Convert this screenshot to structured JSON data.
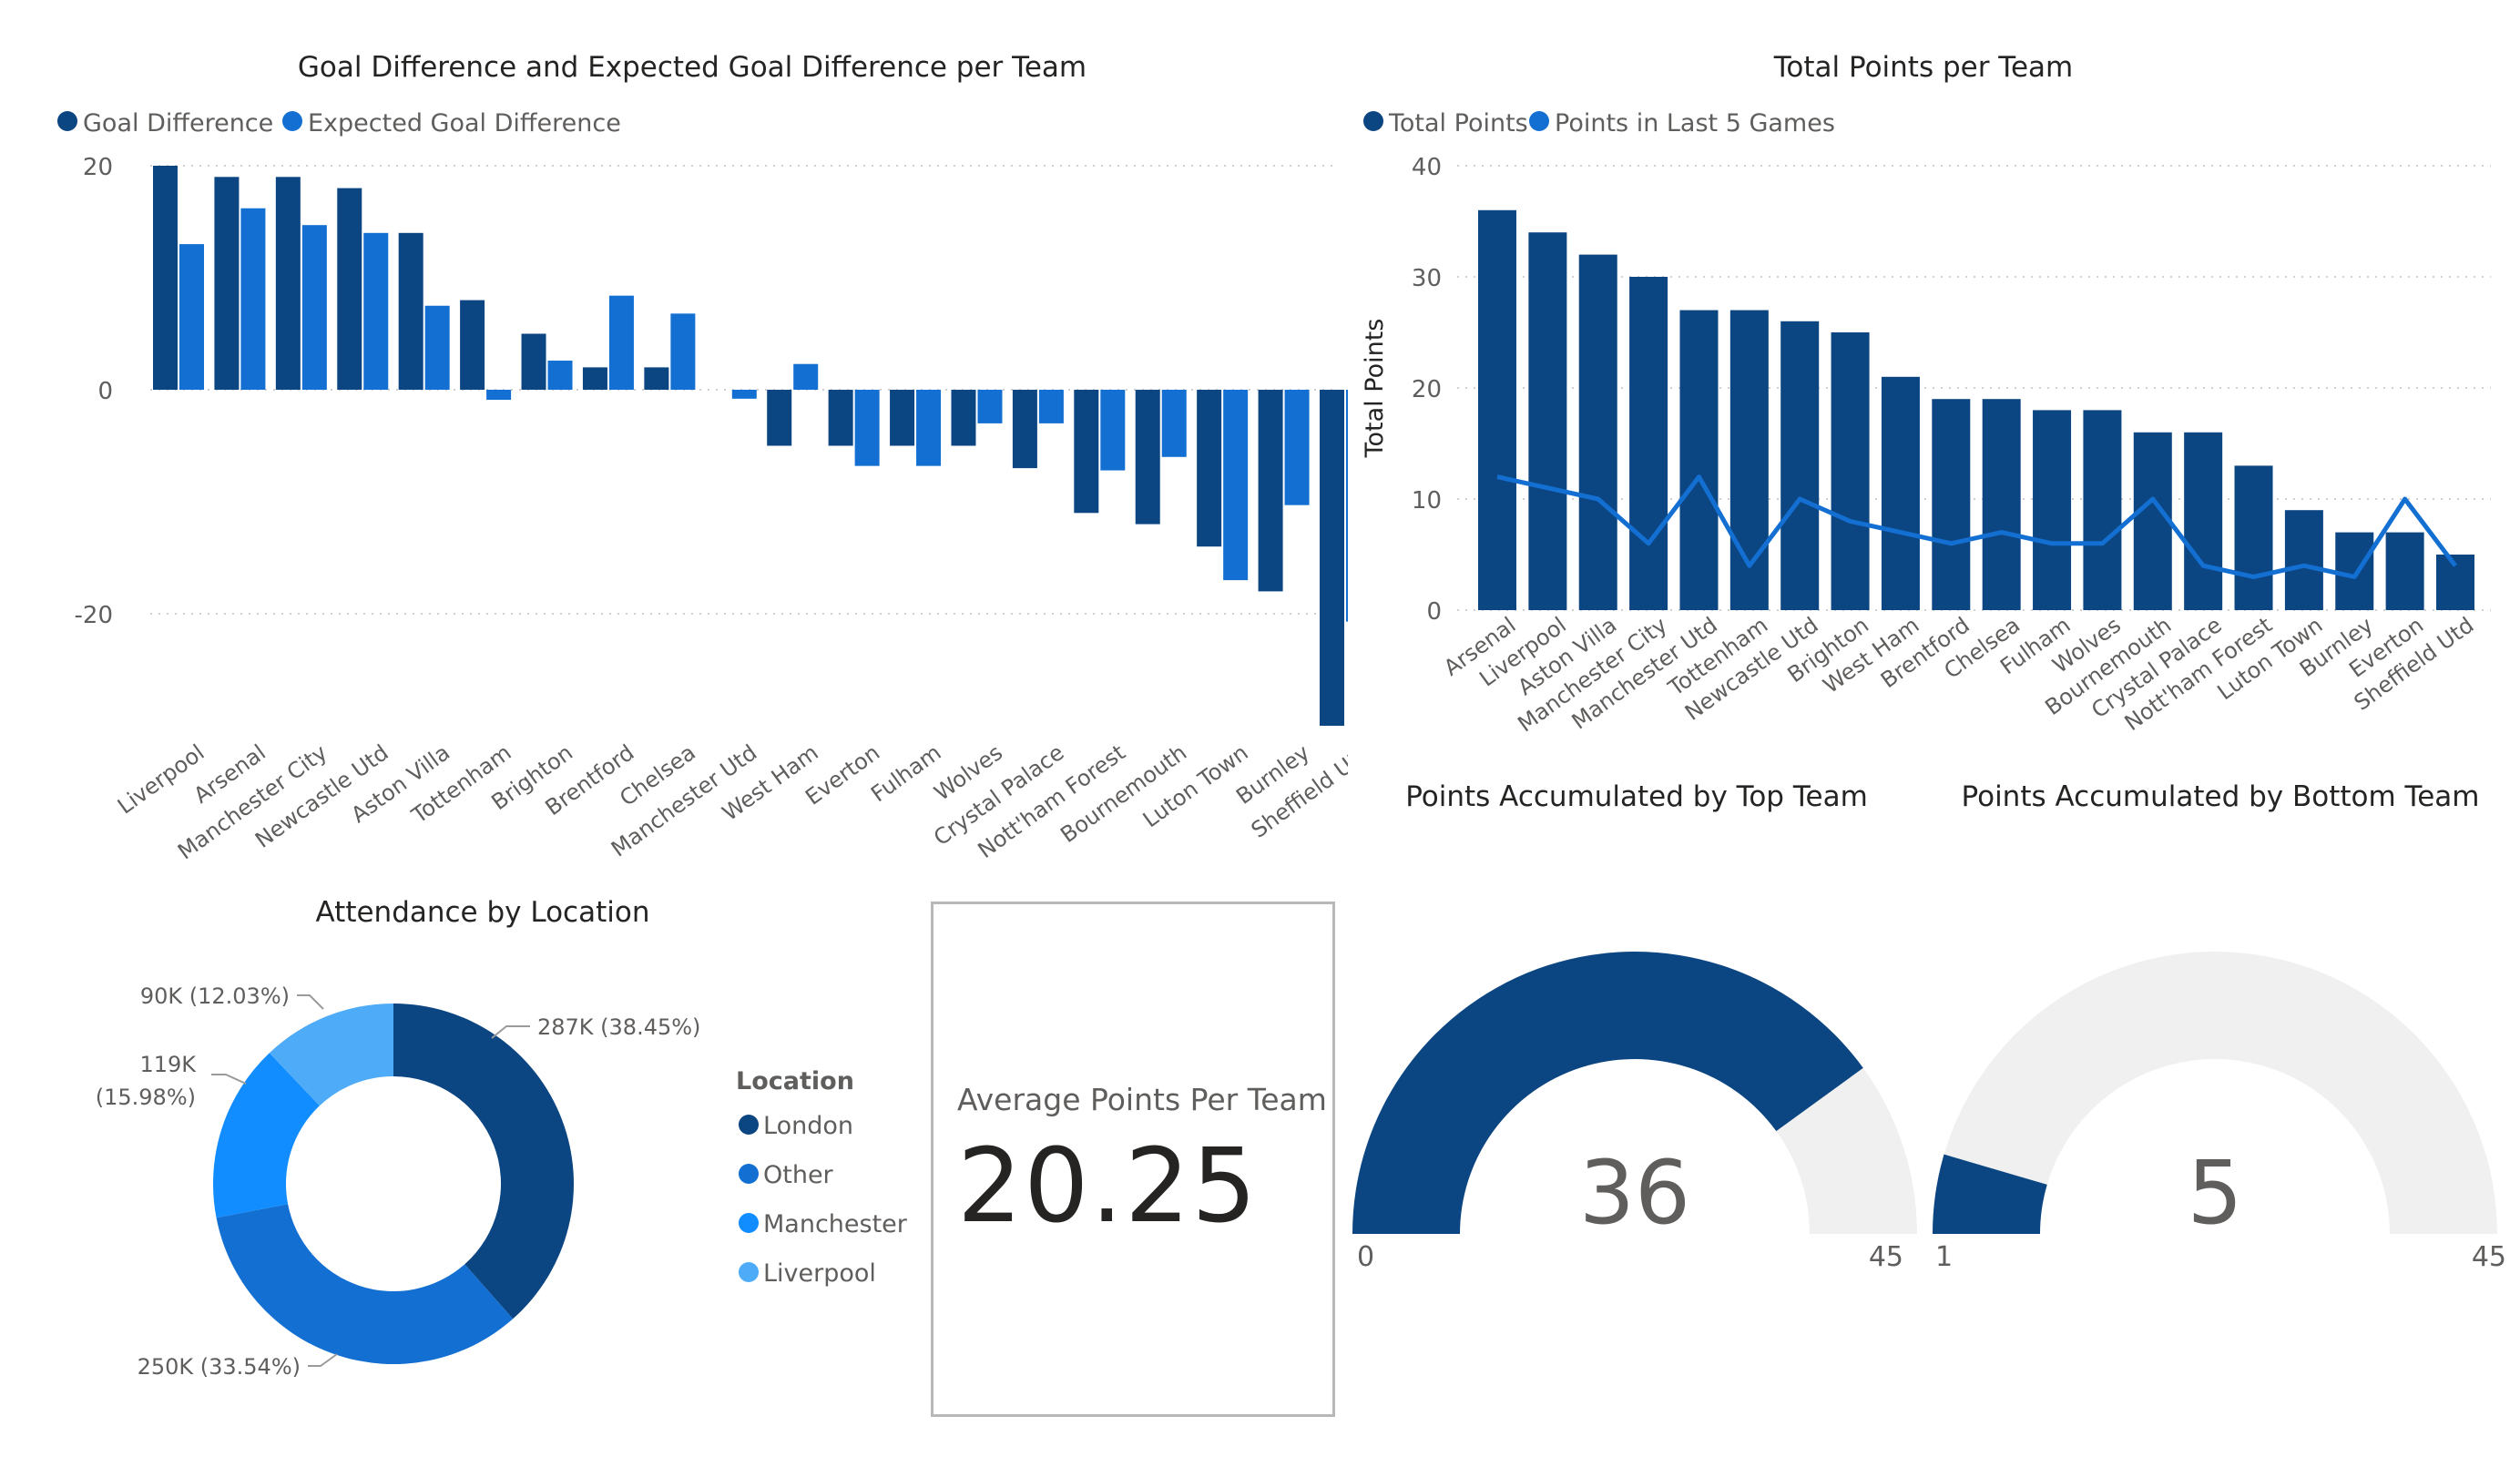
{
  "colors": {
    "dark_blue": "#0c4682",
    "mid_blue": "#136fd2",
    "bright_blue": "#118dff",
    "light_blue": "#4eabf7",
    "gauge_track": "#f0f0f0",
    "grid": "#d0d0d0",
    "text": "#252423",
    "muted": "#605e5c"
  },
  "kpi_card": {
    "label": "Average Points Per Team",
    "value": "20.25"
  },
  "chart_data": [
    {
      "id": "goal-difference",
      "type": "bar",
      "title": "Goal Difference and Expected Goal Difference per Team",
      "xlabel": "",
      "ylabel": "",
      "ylim": [
        -30,
        20
      ],
      "yticks": [
        20,
        0,
        -20
      ],
      "grid": true,
      "legend": "top-left",
      "categories": [
        "Liverpool",
        "Arsenal",
        "Manchester City",
        "Newcastle Utd",
        "Aston Villa",
        "Tottenham",
        "Brighton",
        "Brentford",
        "Chelsea",
        "Manchester Utd",
        "West Ham",
        "Everton",
        "Fulham",
        "Wolves",
        "Crystal Palace",
        "Nott'ham Forest",
        "Bournemouth",
        "Luton Town",
        "Burnley",
        "Sheffield Utd"
      ],
      "series": [
        {
          "name": "Goal Difference",
          "color": "#0c4682",
          "values": [
            20,
            19,
            19,
            18,
            14,
            8,
            5,
            2,
            2,
            0,
            -5,
            -5,
            -5,
            -5,
            -7,
            -11,
            -12,
            -14,
            -18,
            -30
          ]
        },
        {
          "name": "Expected Goal Difference",
          "color": "#136fd2",
          "values": [
            13,
            16.2,
            14.7,
            14,
            7.5,
            -0.9,
            2.6,
            8.4,
            6.8,
            -0.8,
            2.3,
            -6.8,
            -6.8,
            -3,
            -3,
            -7.2,
            -6,
            -17,
            -10.3,
            -20.7
          ]
        }
      ]
    },
    {
      "id": "total-points",
      "type": "bar",
      "title": "Total Points per Team",
      "xlabel": "",
      "ylabel": "Total Points",
      "ylim": [
        0,
        40
      ],
      "yticks": [
        40,
        30,
        20,
        10,
        0
      ],
      "grid": true,
      "legend": "top-left",
      "categories": [
        "Arsenal",
        "Liverpool",
        "Aston Villa",
        "Manchester City",
        "Manchester Utd",
        "Tottenham",
        "Newcastle Utd",
        "Brighton",
        "West Ham",
        "Brentford",
        "Chelsea",
        "Fulham",
        "Wolves",
        "Bournemouth",
        "Crystal Palace",
        "Nott'ham Forest",
        "Luton Town",
        "Burnley",
        "Everton",
        "Sheffield Utd"
      ],
      "series": [
        {
          "name": "Total Points",
          "type": "bar",
          "color": "#0c4682",
          "values": [
            36,
            34,
            32,
            30,
            27,
            27,
            26,
            25,
            21,
            19,
            19,
            18,
            18,
            16,
            16,
            13,
            9,
            7,
            7,
            5
          ]
        },
        {
          "name": "Points in Last 5 Games",
          "type": "line",
          "color": "#136fd2",
          "values": [
            12,
            11,
            10,
            6,
            12,
            4,
            10,
            8,
            7,
            6,
            7,
            6,
            6,
            10,
            4,
            3,
            4,
            3,
            10,
            4
          ]
        }
      ]
    },
    {
      "id": "attendance",
      "type": "pie",
      "donut": true,
      "title": "Attendance by Location",
      "legend_title": "Location",
      "legend": "right",
      "slices": [
        {
          "name": "London",
          "value": 287,
          "label": "287K (38.45%)",
          "color": "#0c4682"
        },
        {
          "name": "Other",
          "value": 250,
          "label": "250K (33.54%)",
          "color": "#136fd2"
        },
        {
          "name": "Manchester",
          "value": 119,
          "label": "119K (15.98%)",
          "color": "#118dff"
        },
        {
          "name": "Liverpool",
          "value": 90,
          "label": "90K (12.03%)",
          "color": "#4eabf7"
        }
      ]
    },
    {
      "id": "gauge-top",
      "type": "gauge",
      "title": "Points Accumulated by Top Team",
      "value": 36,
      "value_label": "36",
      "min": 0,
      "max": 45,
      "min_label": "0",
      "max_label": "45"
    },
    {
      "id": "gauge-bottom",
      "type": "gauge",
      "title": "Points Accumulated by Bottom Team",
      "value": 5,
      "value_label": "5",
      "min": 1,
      "max": 45,
      "min_label": "1",
      "max_label": "45"
    }
  ]
}
